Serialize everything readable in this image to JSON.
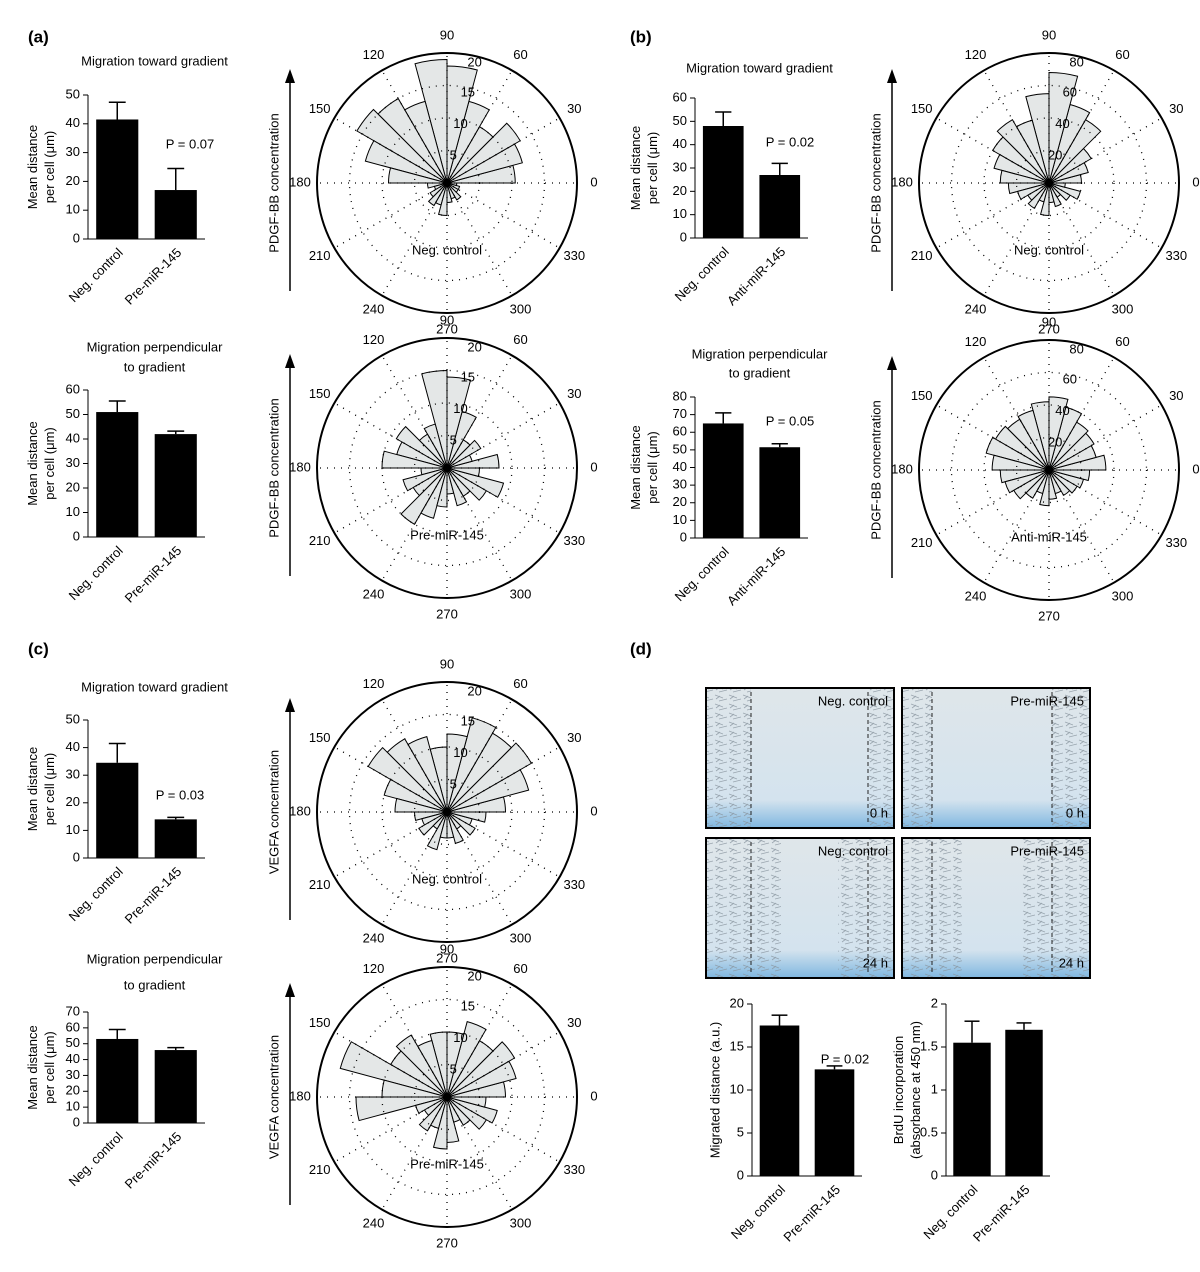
{
  "panel_labels": [
    "(a)",
    "(b)",
    "(c)",
    "(d)"
  ],
  "images": [
    {
      "label": "Neg. control",
      "time": "0 h"
    },
    {
      "label": "Pre-miR-145",
      "time": "0 h"
    },
    {
      "label": "Neg. control",
      "time": "24 h"
    },
    {
      "label": "Pre-miR-145",
      "time": "24 h"
    }
  ],
  "chart_data": [
    {
      "type": "bar",
      "title": [
        "Migration toward gradient"
      ],
      "ylabel": [
        "Mean distance",
        "per cell (μm)"
      ],
      "categories": [
        "Neg. control",
        "Pre-miR-145"
      ],
      "values": [
        41.5,
        17
      ],
      "errors": [
        6,
        7.5
      ],
      "ylim": [
        0,
        50
      ],
      "yticks": [
        0,
        10,
        20,
        30,
        40,
        50
      ],
      "annotation": "P = 0.07",
      "color": "#000000"
    },
    {
      "type": "rose",
      "axis_label": "PDGF-BB concentration",
      "center_label": "Neg. control",
      "values": [
        10.5,
        12,
        13,
        10,
        13,
        18,
        19,
        13,
        15,
        16,
        13,
        9,
        3,
        2,
        3,
        4,
        3.5,
        5,
        3,
        2.5,
        3,
        2,
        2,
        1.5
      ],
      "rlim": [
        0,
        20
      ],
      "rticks": [
        5,
        10,
        15,
        20
      ],
      "thetaticks": [
        0,
        30,
        60,
        90,
        120,
        150,
        180,
        210,
        240,
        270,
        300,
        330
      ],
      "color": "#e4e7e7"
    },
    {
      "type": "bar",
      "title": [
        "Migration perpendicular",
        "to gradient"
      ],
      "ylabel": [
        "Mean distance",
        "per cell (μm)"
      ],
      "categories": [
        "Neg. control",
        "Pre-miR-145"
      ],
      "values": [
        51,
        42
      ],
      "errors": [
        4.5,
        1.2
      ],
      "ylim": [
        0,
        60
      ],
      "yticks": [
        0,
        10,
        20,
        30,
        40,
        50,
        60
      ],
      "color": "#000000"
    },
    {
      "type": "rose",
      "axis_label": "PDGF-BB concentration",
      "center_label": "Pre-miR-145",
      "values": [
        8,
        4,
        6,
        5,
        9,
        14,
        15,
        7,
        6,
        9,
        8,
        10,
        4,
        7,
        6,
        10,
        8,
        6,
        4,
        6,
        5,
        7,
        9,
        5
      ],
      "rlim": [
        0,
        20
      ],
      "rticks": [
        5,
        10,
        15,
        20
      ],
      "thetaticks": [
        0,
        30,
        60,
        90,
        120,
        150,
        180,
        210,
        240,
        270,
        300,
        330
      ],
      "color": "#e4e7e7"
    },
    {
      "type": "bar",
      "title": [
        "Migration toward gradient"
      ],
      "ylabel": [
        "Mean distance",
        "per cell (μm)"
      ],
      "categories": [
        "Neg. control",
        "Anti-miR-145"
      ],
      "values": [
        48,
        27
      ],
      "errors": [
        6,
        5
      ],
      "ylim": [
        0,
        60
      ],
      "yticks": [
        0,
        10,
        20,
        30,
        40,
        50,
        60
      ],
      "annotation": "P = 0.02",
      "color": "#000000"
    },
    {
      "type": "rose",
      "axis_label": "PDGF-BB concentration",
      "center_label": "Neg. control",
      "values": [
        20,
        25,
        30,
        45,
        50,
        68,
        55,
        40,
        45,
        40,
        35,
        30,
        25,
        20,
        15,
        18,
        12,
        20,
        12,
        15,
        10,
        15,
        20,
        10
      ],
      "rlim": [
        0,
        80
      ],
      "rticks": [
        20,
        40,
        60,
        80
      ],
      "thetaticks": [
        0,
        30,
        60,
        90,
        120,
        150,
        180,
        210,
        240,
        270,
        300,
        330
      ],
      "color": "#e4e7e7"
    },
    {
      "type": "bar",
      "title": [
        "Migration perpendicular",
        "to gradient"
      ],
      "ylabel": [
        "Mean distance",
        "per cell (μm)"
      ],
      "categories": [
        "Neg. control",
        "Anti-miR-145"
      ],
      "values": [
        65,
        51.5
      ],
      "errors": [
        6,
        2
      ],
      "ylim": [
        0,
        80
      ],
      "yticks": [
        0,
        10,
        20,
        30,
        40,
        50,
        60,
        70,
        80
      ],
      "annotation": "P = 0.05",
      "color": "#000000"
    },
    {
      "type": "rose",
      "axis_label": "PDGF-BB concentration",
      "center_label": "Anti-miR-145",
      "values": [
        35,
        30,
        32,
        34,
        40,
        45,
        42,
        38,
        36,
        38,
        40,
        35,
        30,
        28,
        25,
        20,
        15,
        22,
        18,
        15,
        18,
        20,
        22,
        25
      ],
      "rlim": [
        0,
        80
      ],
      "rticks": [
        20,
        40,
        60,
        80
      ],
      "thetaticks": [
        0,
        30,
        60,
        90,
        120,
        150,
        180,
        210,
        240,
        270,
        300,
        330
      ],
      "color": "#e4e7e7"
    },
    {
      "type": "bar",
      "title": [
        "Migration toward gradient"
      ],
      "ylabel": [
        "Mean distance",
        "per cell (μm)"
      ],
      "categories": [
        "Neg. control",
        "Pre-miR-145"
      ],
      "values": [
        34.5,
        14
      ],
      "errors": [
        7,
        0.7
      ],
      "ylim": [
        0,
        50
      ],
      "yticks": [
        0,
        10,
        20,
        30,
        40,
        50
      ],
      "annotation": "P = 0.03",
      "color": "#000000"
    },
    {
      "type": "rose",
      "axis_label": "VEGFA concentration",
      "center_label": "Neg. control",
      "values": [
        9,
        13,
        15,
        14,
        15,
        12,
        10,
        12,
        13,
        14,
        10,
        8,
        5,
        4,
        5,
        3,
        6,
        4,
        4,
        5,
        3,
        5,
        4,
        6
      ],
      "rlim": [
        0,
        20
      ],
      "rticks": [
        5,
        10,
        15,
        20
      ],
      "thetaticks": [
        0,
        30,
        60,
        90,
        120,
        150,
        180,
        210,
        240,
        270,
        300,
        330
      ],
      "color": "#e4e7e7"
    },
    {
      "type": "bar",
      "title": [
        "Migration perpendicular",
        "to gradient"
      ],
      "ylabel": [
        "Mean distance",
        "per cell (μm)"
      ],
      "categories": [
        "Neg. control",
        "Pre-miR-145"
      ],
      "values": [
        53,
        46
      ],
      "errors": [
        6,
        1.5
      ],
      "ylim": [
        0,
        70
      ],
      "yticks": [
        0,
        10,
        20,
        30,
        40,
        50,
        60,
        70
      ],
      "color": "#000000"
    },
    {
      "type": "rose",
      "axis_label": "VEGFA concentration",
      "center_label": "Pre-miR-145",
      "values": [
        9,
        11,
        12,
        10,
        12,
        10,
        10,
        9,
        11,
        10,
        17,
        10,
        14,
        5,
        4,
        6,
        5,
        8,
        7,
        4,
        5,
        7,
        8,
        6
      ],
      "rlim": [
        0,
        20
      ],
      "rticks": [
        5,
        10,
        15,
        20
      ],
      "thetaticks": [
        0,
        30,
        60,
        90,
        120,
        150,
        180,
        210,
        240,
        270,
        300,
        330
      ],
      "color": "#e4e7e7"
    },
    {
      "type": "bar",
      "ylabel": [
        "Migrated distance (a.u.)"
      ],
      "categories": [
        "Neg. control",
        "Pre-miR-145"
      ],
      "values": [
        17.5,
        12.4
      ],
      "errors": [
        1.2,
        0.4
      ],
      "ylim": [
        0,
        20
      ],
      "yticks": [
        0,
        5,
        10,
        15,
        20
      ],
      "annotation": "P = 0.02",
      "color": "#000000"
    },
    {
      "type": "bar",
      "ylabel": [
        "BrdU incorporation",
        "(absorbance at 450 nm)"
      ],
      "categories": [
        "Neg. control",
        "Pre-miR-145"
      ],
      "values": [
        1.55,
        1.7
      ],
      "errors": [
        0.25,
        0.08
      ],
      "ylim": [
        0,
        2
      ],
      "yticks": [
        0,
        0.5,
        1,
        1.5,
        2
      ],
      "color": "#000000"
    }
  ]
}
